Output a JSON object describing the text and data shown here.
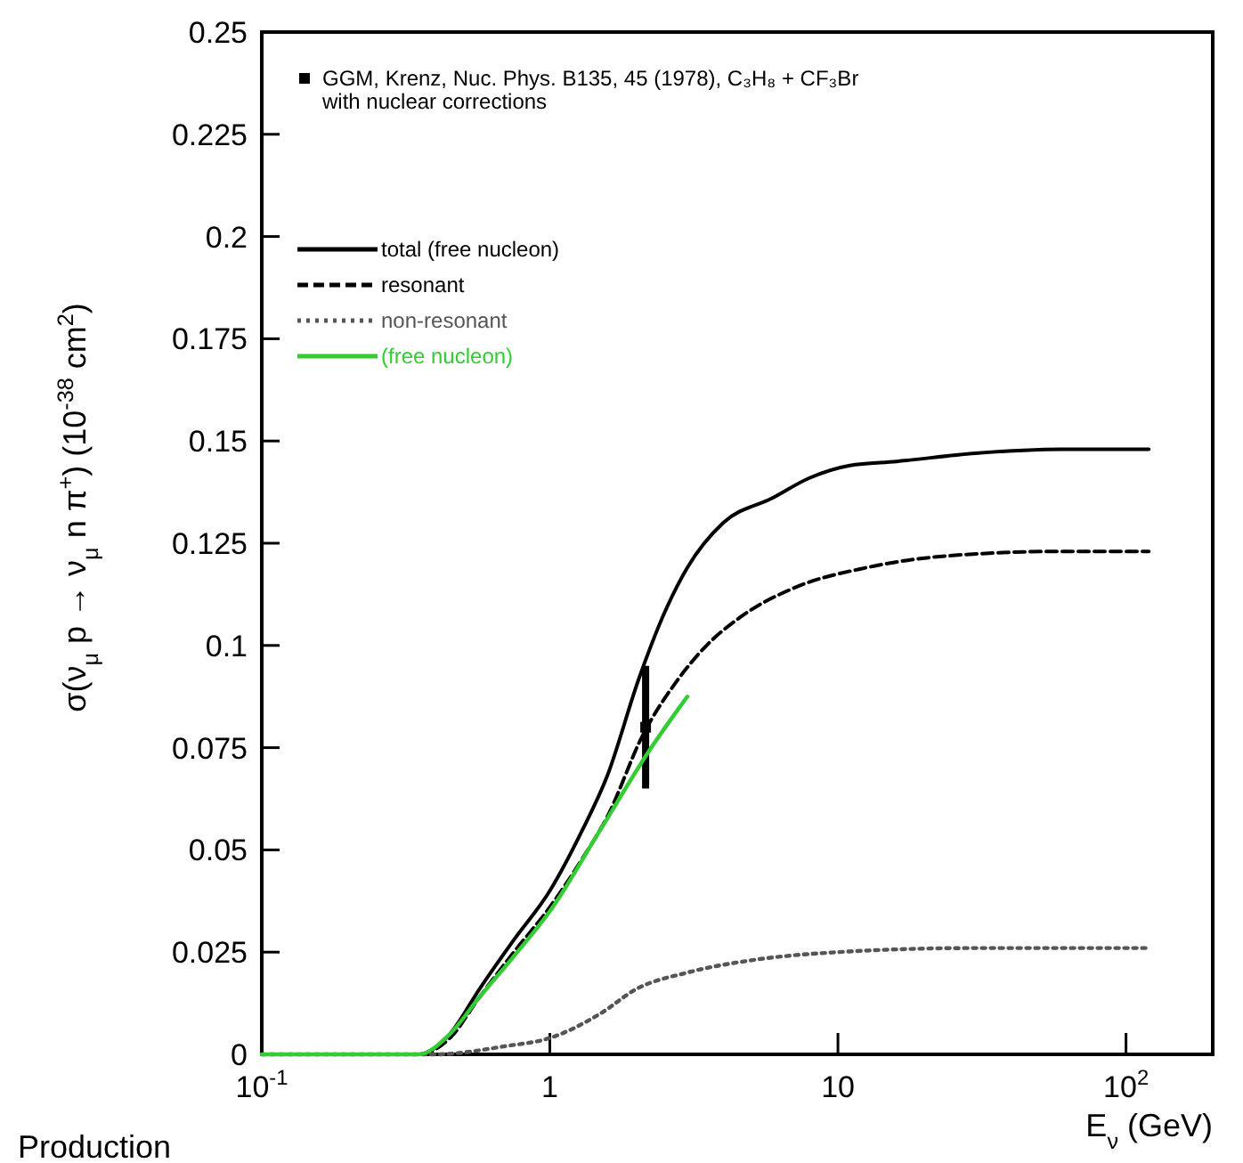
{
  "chart_data": {
    "type": "line",
    "xlabel": "E$_{ν}$ (GeV)",
    "ylabel": "σ(ν$_{μ}$ p → ν$_{μ}$ n π$^{+}$) (10$^{-38}$ cm$^{2}$)",
    "log": "x",
    "xlim": [
      0.1,
      200
    ],
    "ylim": [
      0,
      0.25
    ],
    "xticks": [
      {
        "value": 0.1,
        "label": "10$^{-1}$"
      },
      1,
      10,
      {
        "value": 100,
        "label": "10$^{2}$"
      }
    ],
    "yticks": [
      0,
      0.025,
      0.05,
      0.075,
      0.1,
      0.125,
      0.15,
      0.175,
      0.2,
      0.225,
      0.25
    ],
    "grid": false,
    "legend": "top left",
    "annotations": [
      "Production"
    ],
    "series": [
      {
        "type": "scatter",
        "name": "GGM, Krenz, Nuc. Phys. B135, 45 (1978), C₃H₈ + CF₃Br with nuclear corrections",
        "color": "#000000",
        "marker": "square",
        "x": [
          2.15
        ],
        "values": [
          0.08
        ],
        "errors": [
          0.015
        ]
      },
      {
        "name": "total (free nucleon)",
        "color": "#000000",
        "line_style": "solid",
        "x": [
          0.1,
          0.35,
          0.45,
          0.57,
          0.75,
          1.0,
          1.3,
          1.58,
          2.04,
          2.5,
          3.0,
          4.0,
          5.9,
          8,
          11,
          16,
          30,
          60,
          120
        ],
        "values": [
          0,
          0,
          0.005,
          0.016,
          0.028,
          0.04,
          0.055,
          0.068,
          0.092,
          0.108,
          0.119,
          0.13,
          0.136,
          0.141,
          0.144,
          0.145,
          0.147,
          0.148,
          0.148
        ]
      },
      {
        "name": "resonant",
        "color": "#000000",
        "line_style": "dashed",
        "x": [
          0.1,
          0.35,
          0.45,
          0.57,
          0.75,
          1.0,
          1.3,
          1.58,
          2.1,
          2.74,
          3.5,
          4.6,
          7,
          12.5,
          25,
          60,
          120
        ],
        "values": [
          0,
          0,
          0.004,
          0.014,
          0.025,
          0.036,
          0.048,
          0.058,
          0.078,
          0.091,
          0.1,
          0.107,
          0.114,
          0.119,
          0.122,
          0.123,
          0.123
        ]
      },
      {
        "name": "non-resonant",
        "color": "#555555",
        "line_style": "dotted",
        "x": [
          0.1,
          0.4,
          0.7,
          1.0,
          1.5,
          2,
          3,
          5,
          10,
          30,
          120
        ],
        "values": [
          0,
          0,
          0.002,
          0.004,
          0.01,
          0.016,
          0.02,
          0.023,
          0.025,
          0.026,
          0.026
        ]
      },
      {
        "name": "(free nucleon)",
        "color": "#33cc33",
        "line_style": "solid",
        "x": [
          0.1,
          0.35,
          0.45,
          0.57,
          0.75,
          1.0,
          1.5,
          2.2,
          3.0
        ],
        "values": [
          0,
          0,
          0.005,
          0.014,
          0.024,
          0.035,
          0.055,
          0.074,
          0.0875
        ]
      }
    ]
  }
}
